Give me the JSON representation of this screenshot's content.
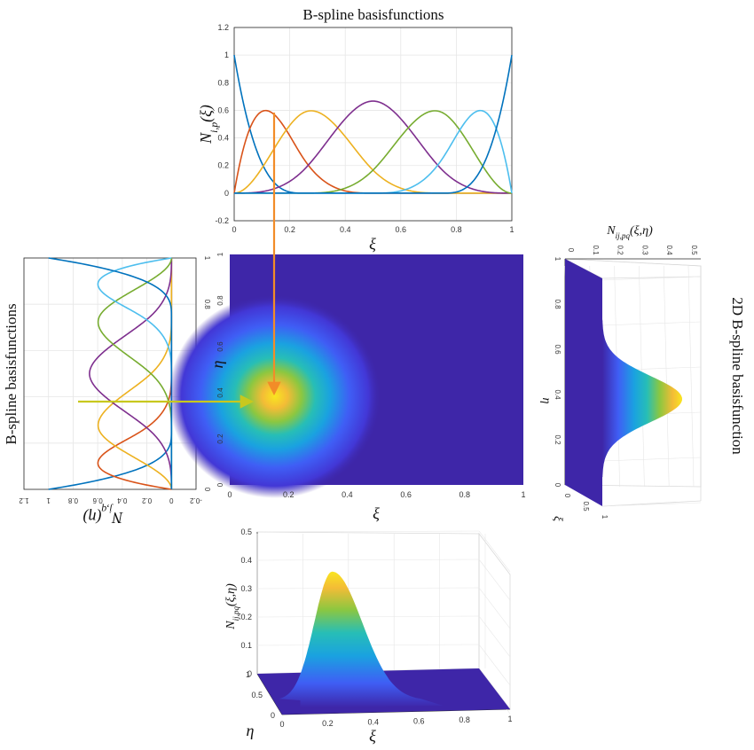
{
  "colors": {
    "series": [
      "#0072BD",
      "#D95319",
      "#EDB120",
      "#7E2F8E",
      "#77AC30",
      "#4DBEEE"
    ],
    "arrow_xi": "#F28C28",
    "arrow_eta": "#C8C81E",
    "surface_base": "#3E26A8",
    "axis_box": "#262626",
    "grid": "#E6E6E6"
  },
  "labels": {
    "top_title": "B-spline basisfunctions",
    "left_title": "B-spline basisfunctions",
    "right_title": "2D B-spline basisfunction",
    "top_ylabel": "N_{i,p}(ξ)",
    "top_xlabel": "ξ",
    "left_ylabel": "N_{j,q}(η)",
    "center_ylabel": "η",
    "center_xlabel": "ξ",
    "right_top_label": "N_{ij,pq}(ξ,η)",
    "right_eta_label": "η",
    "right_xi_label": "ξ",
    "bottom_zlabel": "N_{ij,pq}(ξ,η)",
    "bottom_eta_label": "η",
    "bottom_xi_label": "ξ"
  },
  "chart_data": [
    {
      "id": "top-basis",
      "type": "line",
      "title": "B-spline basisfunctions",
      "xlabel": "ξ",
      "ylabel": "N_{i,p}(ξ)",
      "xlim": [
        0,
        1
      ],
      "ylim": [
        -0.2,
        1.2
      ],
      "xticks": [
        "0",
        "0.2",
        "0.4",
        "0.6",
        "0.8",
        "1"
      ],
      "yticks": [
        "-0.2",
        "0",
        "0.2",
        "0.4",
        "0.6",
        "0.8",
        "1",
        "1.2"
      ],
      "grid": true,
      "knots": [
        0,
        0,
        0,
        0,
        0.25,
        0.5,
        0.75,
        1,
        1,
        1,
        1
      ],
      "degree": 3,
      "series_count": 6
    },
    {
      "id": "left-basis",
      "type": "line",
      "title": "B-spline basisfunctions",
      "ylabel": "N_{j,q}(η)",
      "orientation": "rotated, η on the vertical axis",
      "xlim": [
        -0.2,
        1.2
      ],
      "ylim": [
        0,
        1
      ],
      "value_ticks": [
        "-0.2",
        "0",
        "0.2",
        "0.4",
        "0.6",
        "0.8",
        "1",
        "1.2"
      ],
      "eta_ticks": [
        "0",
        "0.2",
        "0.4",
        "0.6",
        "0.8",
        "1"
      ],
      "grid": true,
      "knots": [
        0,
        0,
        0,
        0,
        0.25,
        0.5,
        0.75,
        1,
        1,
        1,
        1
      ],
      "degree": 3,
      "series_count": 6
    },
    {
      "id": "center-heatmap",
      "type": "heatmap",
      "xlabel": "ξ",
      "ylabel": "η",
      "xlim": [
        0,
        1
      ],
      "ylim": [
        0,
        1
      ],
      "xticks": [
        "0",
        "0.2",
        "0.4",
        "0.6",
        "0.8",
        "1"
      ],
      "yticks": [
        "0",
        "0.2",
        "0.4",
        "0.6",
        "0.8",
        "1"
      ],
      "peak": {
        "xi": 0.15,
        "eta": 0.38,
        "value": 0.36
      }
    },
    {
      "id": "right-profile",
      "type": "area",
      "title": "2D B-spline basisfunction",
      "zlabel": "N_{ij,pq}(ξ,η)",
      "ylabel": "η",
      "xlabel": "ξ",
      "zticks": [
        "0",
        "0.1",
        "0.2",
        "0.3",
        "0.4",
        "0.5"
      ],
      "eta_ticks": [
        "0",
        "0.2",
        "0.4",
        "0.6",
        "0.8",
        "1"
      ],
      "xi_ticks": [
        "0",
        "0.5",
        "1"
      ],
      "peak_eta": 0.38,
      "peak_value": 0.36
    },
    {
      "id": "bottom-surface",
      "type": "area",
      "zlabel": "N_{ij,pq}(ξ,η)",
      "xlabel": "ξ",
      "ylabel": "η",
      "zlim": [
        0,
        0.5
      ],
      "zticks": [
        "0",
        "0.1",
        "0.2",
        "0.3",
        "0.4",
        "0.5"
      ],
      "xi_ticks": [
        "0",
        "0.2",
        "0.4",
        "0.6",
        "0.8",
        "1"
      ],
      "eta_ticks": [
        "0",
        "0.5",
        "1"
      ],
      "peak_xi": 0.15,
      "peak_value": 0.36
    }
  ]
}
